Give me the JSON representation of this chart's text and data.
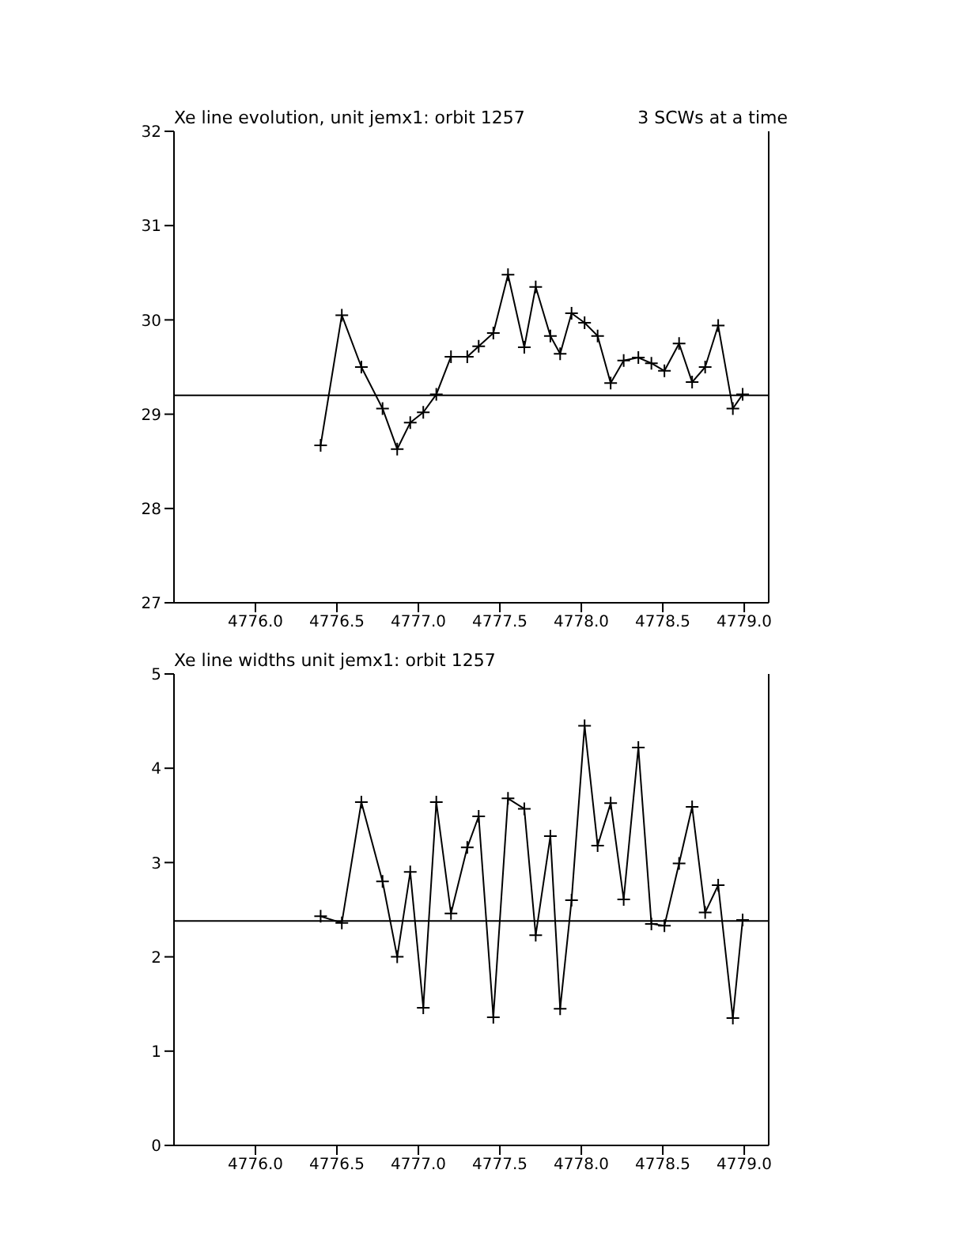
{
  "chart_data": [
    {
      "type": "line",
      "title": "Xe line evolution, unit jemx1: orbit 1257",
      "annotations": [
        "3 SCWs at a time"
      ],
      "marker": "cross",
      "line_style": "solid",
      "grid": false,
      "legend": false,
      "x": [
        4776.4,
        4776.53,
        4776.65,
        4776.78,
        4776.87,
        4776.95,
        4777.03,
        4777.11,
        4777.2,
        4777.3,
        4777.37,
        4777.46,
        4777.55,
        4777.65,
        4777.72,
        4777.81,
        4777.87,
        4777.94,
        4778.02,
        4778.1,
        4778.18,
        4778.26,
        4778.35,
        4778.43,
        4778.51,
        4778.6,
        4778.68,
        4778.76,
        4778.84,
        4778.93,
        4778.99
      ],
      "series": [
        {
          "color": "#000000",
          "values": [
            28.67,
            30.05,
            29.5,
            29.06,
            28.63,
            28.91,
            29.02,
            29.21,
            29.61,
            29.61,
            29.72,
            29.86,
            30.48,
            29.71,
            30.35,
            29.83,
            29.64,
            30.07,
            29.97,
            29.83,
            29.33,
            29.57,
            29.6,
            29.54,
            29.46,
            29.75,
            29.34,
            29.5,
            29.94,
            29.06,
            29.21
          ]
        }
      ],
      "xlim": [
        4775.5,
        4779.15
      ],
      "xticks": [
        {
          "value": 4776,
          "label": "4776.0"
        },
        {
          "value": 4776.5,
          "label": "4776.5"
        },
        {
          "value": 4777,
          "label": "4777.0"
        },
        {
          "value": 4777.5,
          "label": "4777.5"
        },
        {
          "value": 4778,
          "label": "4778.0"
        },
        {
          "value": 4778.5,
          "label": "4778.5"
        },
        {
          "value": 4779,
          "label": "4779.0"
        }
      ],
      "ylim": [
        27,
        32
      ],
      "yticks": [
        27,
        28,
        29,
        30,
        31,
        32
      ],
      "ref_lines": [
        {
          "axis": "y",
          "value": 29.2,
          "color": "#000000"
        }
      ]
    },
    {
      "type": "line",
      "title": "Xe line widths unit jemx1: orbit 1257",
      "marker": "cross",
      "line_style": "solid",
      "grid": false,
      "legend": false,
      "x": [
        4776.4,
        4776.53,
        4776.65,
        4776.78,
        4776.87,
        4776.95,
        4777.03,
        4777.11,
        4777.2,
        4777.3,
        4777.37,
        4777.46,
        4777.55,
        4777.65,
        4777.72,
        4777.81,
        4777.87,
        4777.94,
        4778.02,
        4778.1,
        4778.18,
        4778.26,
        4778.35,
        4778.43,
        4778.51,
        4778.6,
        4778.68,
        4778.76,
        4778.84,
        4778.93,
        4778.99
      ],
      "series": [
        {
          "color": "#000000",
          "values": [
            2.43,
            2.36,
            3.64,
            2.8,
            2.0,
            2.9,
            1.46,
            3.64,
            2.46,
            3.16,
            3.49,
            1.36,
            3.68,
            3.57,
            2.23,
            3.28,
            1.45,
            2.6,
            4.45,
            3.18,
            3.63,
            2.61,
            4.22,
            2.35,
            2.33,
            2.99,
            3.59,
            2.47,
            2.76,
            1.35,
            2.39
          ]
        }
      ],
      "xlim": [
        4775.5,
        4779.15
      ],
      "xticks": [
        {
          "value": 4776,
          "label": "4776.0"
        },
        {
          "value": 4776.5,
          "label": "4776.5"
        },
        {
          "value": 4777,
          "label": "4777.0"
        },
        {
          "value": 4777.5,
          "label": "4777.5"
        },
        {
          "value": 4778,
          "label": "4778.0"
        },
        {
          "value": 4778.5,
          "label": "4778.5"
        },
        {
          "value": 4779,
          "label": "4779.0"
        }
      ],
      "ylim": [
        0,
        5
      ],
      "yticks": [
        0,
        1,
        2,
        3,
        4,
        5
      ],
      "ref_lines": [
        {
          "axis": "y",
          "value": 2.38,
          "color": "#000000"
        }
      ]
    }
  ]
}
